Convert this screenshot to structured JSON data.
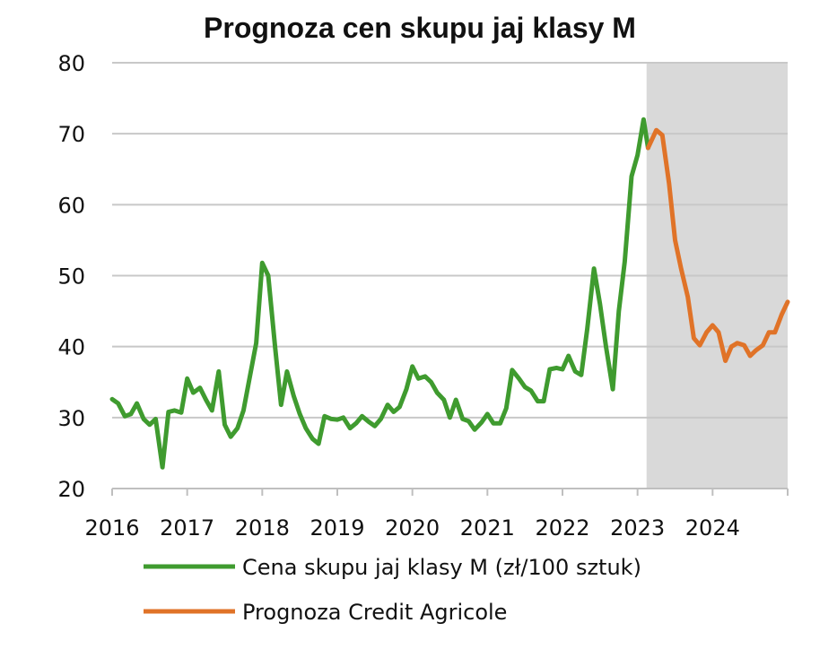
{
  "chart_data": {
    "type": "line",
    "title": "Prognoza cen skupu jaj klasy M",
    "xlabel": "",
    "ylabel": "",
    "xlim": [
      2016.0,
      2025.0
    ],
    "ylim": [
      20,
      80
    ],
    "y_ticks": [
      20,
      30,
      40,
      50,
      60,
      70,
      80
    ],
    "x_ticks": [
      2016,
      2017,
      2018,
      2019,
      2020,
      2021,
      2022,
      2023,
      2024
    ],
    "x_tick_labels": [
      "2016",
      "2017",
      "2018",
      "2019",
      "2020",
      "2021",
      "2022",
      "2023",
      "2024"
    ],
    "grid": "horizontal",
    "legend_position": "bottom",
    "forecast_shading": {
      "from": 2023.12,
      "to": 2025.0,
      "color": "#d9d9d9"
    },
    "series": [
      {
        "name": "Cena skupu jaj klasy M (zł/100 sztuk)",
        "color": "#3f9b2f",
        "x": [
          2016.0,
          2016.08,
          2016.17,
          2016.25,
          2016.33,
          2016.42,
          2016.5,
          2016.58,
          2016.67,
          2016.75,
          2016.83,
          2016.92,
          2017.0,
          2017.08,
          2017.17,
          2017.25,
          2017.33,
          2017.42,
          2017.5,
          2017.58,
          2017.67,
          2017.75,
          2017.83,
          2017.92,
          2018.0,
          2018.08,
          2018.17,
          2018.25,
          2018.33,
          2018.42,
          2018.5,
          2018.58,
          2018.67,
          2018.75,
          2018.83,
          2018.92,
          2019.0,
          2019.08,
          2019.17,
          2019.25,
          2019.33,
          2019.42,
          2019.5,
          2019.58,
          2019.67,
          2019.75,
          2019.83,
          2019.92,
          2020.0,
          2020.08,
          2020.17,
          2020.25,
          2020.33,
          2020.42,
          2020.5,
          2020.58,
          2020.67,
          2020.75,
          2020.83,
          2020.92,
          2021.0,
          2021.08,
          2021.17,
          2021.25,
          2021.33,
          2021.42,
          2021.5,
          2021.58,
          2021.67,
          2021.75,
          2021.83,
          2021.92,
          2022.0,
          2022.08,
          2022.17,
          2022.25,
          2022.33,
          2022.42,
          2022.5,
          2022.58,
          2022.67,
          2022.75,
          2022.83,
          2022.92,
          2023.0,
          2023.08,
          2023.14
        ],
        "values": [
          32.6,
          32.0,
          30.2,
          30.5,
          32.0,
          29.8,
          29.0,
          29.8,
          23.0,
          30.8,
          31.0,
          30.7,
          35.5,
          33.5,
          34.2,
          32.5,
          31.0,
          36.5,
          29.0,
          27.3,
          28.5,
          31.0,
          35.5,
          40.5,
          51.8,
          50.0,
          40.0,
          31.8,
          36.5,
          33.0,
          30.5,
          28.5,
          27.0,
          26.3,
          30.2,
          29.8,
          29.7,
          30.0,
          28.5,
          29.2,
          30.2,
          29.4,
          28.8,
          29.8,
          31.8,
          30.8,
          31.5,
          34.0,
          37.2,
          35.5,
          35.8,
          35.0,
          33.5,
          32.5,
          30.0,
          32.5,
          29.8,
          29.5,
          28.3,
          29.3,
          30.5,
          29.2,
          29.2,
          31.3,
          36.7,
          35.5,
          34.3,
          33.8,
          32.3,
          32.3,
          36.8,
          37.0,
          36.8,
          38.7,
          36.5,
          36.0,
          42.5,
          51.0,
          46.0,
          40.0,
          34.0,
          45.0,
          52.0,
          64.0,
          67.0,
          72.0,
          68.0
        ]
      },
      {
        "name": "Prognoza Credit Agricole",
        "color": "#e07328",
        "x": [
          2023.14,
          2023.25,
          2023.33,
          2023.42,
          2023.5,
          2023.58,
          2023.67,
          2023.75,
          2023.83,
          2023.92,
          2024.0,
          2024.08,
          2024.17,
          2024.25,
          2024.33,
          2024.42,
          2024.5,
          2024.58,
          2024.67,
          2024.75,
          2024.83,
          2024.92,
          2025.0
        ],
        "values": [
          68.0,
          70.5,
          69.8,
          63.0,
          55.0,
          51.0,
          47.0,
          41.2,
          40.2,
          42.0,
          43.0,
          42.0,
          38.0,
          40.0,
          40.5,
          40.2,
          38.7,
          39.5,
          40.2,
          42.0,
          42.0,
          44.5,
          46.3
        ]
      }
    ]
  }
}
